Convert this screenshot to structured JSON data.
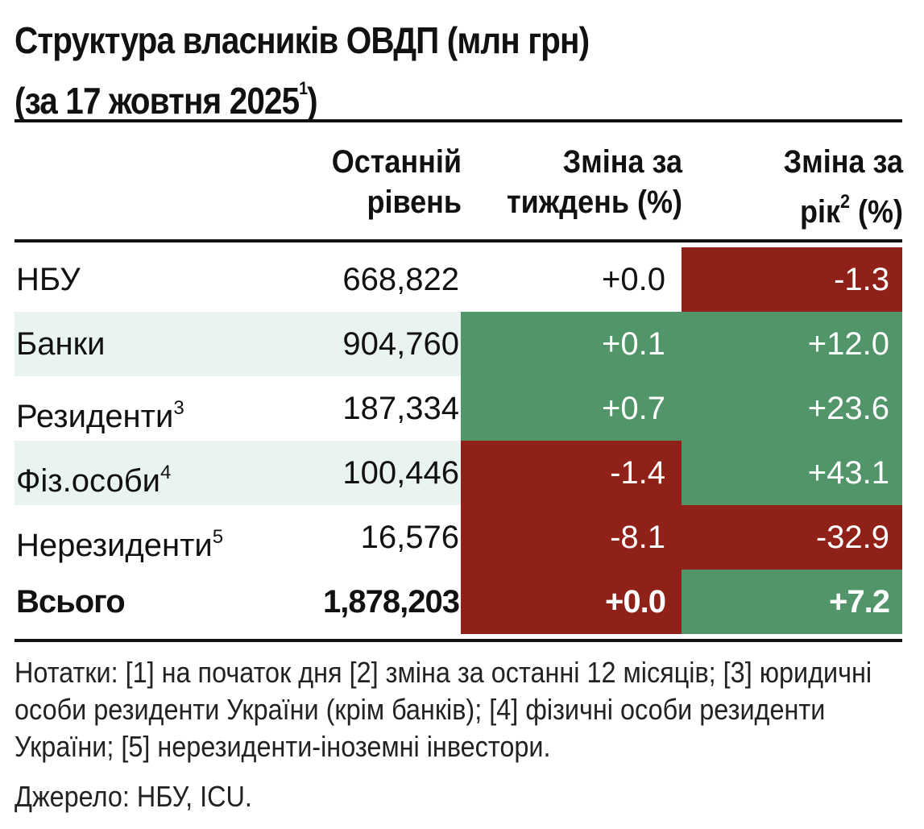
{
  "chart_data": {
    "type": "table",
    "title_line1": "Структура власників ОВДП (млн грн)",
    "title_line2": "(за 17 жовтня 2025",
    "title_sup": "1",
    "title_close": ")",
    "columns": {
      "level_line1": "Останній",
      "level_line2": "рівень",
      "week_line1": "Зміна за",
      "week_line2": "тиждень (%)",
      "year_line1": "Зміна за",
      "year_line2a": "рік",
      "year_sup": "2",
      "year_line2b": " (%)"
    },
    "rows": [
      {
        "label": "НБУ",
        "sup": "",
        "level": "668,822",
        "week": "+0.0",
        "year": "-1.3",
        "week_color": "none",
        "year_color": "#8f2119"
      },
      {
        "label": "Банки",
        "sup": "",
        "level": "904,760",
        "week": "+0.1",
        "year": "+12.0",
        "week_color": "#53956a",
        "year_color": "#53956a"
      },
      {
        "label": "Резиденти",
        "sup": "3",
        "level": "187,334",
        "week": "+0.7",
        "year": "+23.6",
        "week_color": "#53956a",
        "year_color": "#53956a"
      },
      {
        "label": "Фіз.особи",
        "sup": "4",
        "level": "100,446",
        "week": "-1.4",
        "year": "+43.1",
        "week_color": "#8f2119",
        "year_color": "#53956a"
      },
      {
        "label": "Нерезиденти",
        "sup": "5",
        "level": "16,576",
        "week": "-8.1",
        "year": "-32.9",
        "week_color": "#8f2119",
        "year_color": "#8f2119"
      },
      {
        "label": "Всього",
        "sup": "",
        "level": "1,878,203",
        "week": "+0.0",
        "year": "+7.2",
        "week_color": "#8f2119",
        "year_color": "#53956a"
      }
    ],
    "values_level": [
      668822,
      904760,
      187334,
      100446,
      16576,
      1878203
    ],
    "values_week_pct": [
      0.0,
      0.1,
      0.7,
      -1.4,
      -8.1,
      0.0
    ],
    "values_year_pct": [
      -1.3,
      12.0,
      23.6,
      43.1,
      -32.9,
      7.2
    ],
    "notes": "Нотатки: [1] на початок дня [2] зміна за останні 12 місяців; [3] юридичні особи  резиденти України (крім банків); [4] фізичні особи резиденти України; [5] нерезиденти-іноземні інвестори.",
    "source": "Джерело: НБУ, ICU."
  },
  "colors": {
    "positive": "#53956a",
    "negative": "#8f2119",
    "row_shade": "#e9f3f1"
  }
}
